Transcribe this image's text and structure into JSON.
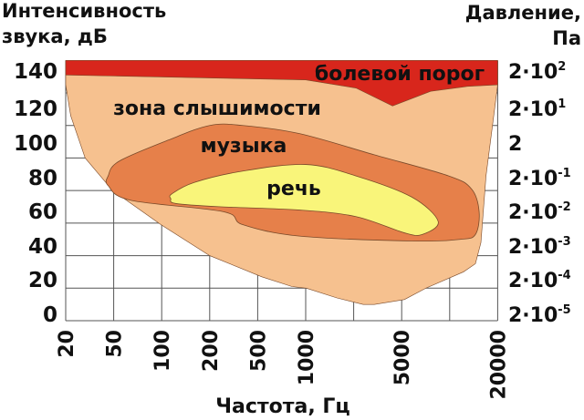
{
  "chart_data": {
    "type": "area",
    "title_left": [
      "Интенсивность",
      "звука, дБ"
    ],
    "title_right": [
      "Давление,",
      "Па"
    ],
    "xlabel": "Частота, Гц",
    "x_scale": "log",
    "x_gridlines_hz": [
      20,
      50,
      100,
      200,
      500,
      1000,
      2000,
      5000,
      10000,
      20000
    ],
    "x_ticks": [
      "20",
      "50",
      "100",
      "200",
      "500",
      "1000",
      "5000",
      "20000"
    ],
    "x_tick_values": [
      20,
      50,
      100,
      200,
      500,
      1000,
      5000,
      20000
    ],
    "y_ticks_left": [
      "140",
      "120",
      "100",
      "80",
      "60",
      "40",
      "20",
      "0"
    ],
    "y_ticks_right": [
      {
        "base": "2·10",
        "exp": "2"
      },
      {
        "base": "2·10",
        "exp": "1"
      },
      {
        "base": "2",
        "exp": ""
      },
      {
        "base": "2·10",
        "exp": "-1"
      },
      {
        "base": "2·10",
        "exp": "-2"
      },
      {
        "base": "2·10",
        "exp": "-3"
      },
      {
        "base": "2·10",
        "exp": "-4"
      },
      {
        "base": "2·10",
        "exp": "-5"
      }
    ],
    "ylim_db": [
      0,
      160
    ],
    "xlim_hz": [
      20,
      20000
    ],
    "grid": true,
    "regions": [
      {
        "name": "зона слышимости",
        "color": "#f6c18f",
        "points": [
          [
            20,
            160
          ],
          [
            20000,
            160
          ],
          [
            20000,
            145
          ],
          [
            18900,
            126
          ],
          [
            16900,
            89
          ],
          [
            15700,
            48
          ],
          [
            14500,
            35
          ],
          [
            12200,
            30
          ],
          [
            7100,
            20
          ],
          [
            5200,
            13
          ],
          [
            2960,
            10
          ],
          [
            2400,
            10
          ],
          [
            1570,
            14
          ],
          [
            1010,
            20
          ],
          [
            820,
            21
          ],
          [
            530,
            27
          ],
          [
            200,
            40
          ],
          [
            99,
            59
          ],
          [
            49,
            80
          ],
          [
            29,
            100
          ],
          [
            22,
            126
          ],
          [
            20,
            145
          ]
        ]
      },
      {
        "name": "болевой порог",
        "color": "#d8261c",
        "points": [
          [
            20,
            160
          ],
          [
            20000,
            160
          ],
          [
            20000,
            145
          ],
          [
            12900,
            144
          ],
          [
            7600,
            141
          ],
          [
            4200,
            132
          ],
          [
            2090,
            143
          ],
          [
            1000,
            148
          ],
          [
            20,
            151
          ]
        ]
      },
      {
        "name": "музыка",
        "color": "#e6804a",
        "points": [
          [
            45,
            89
          ],
          [
            54,
            98
          ],
          [
            110,
            111
          ],
          [
            200,
            120
          ],
          [
            377,
            120
          ],
          [
            914,
            115
          ],
          [
            2960,
            102
          ],
          [
            9860,
            89
          ],
          [
            13700,
            81
          ],
          [
            15300,
            67
          ],
          [
            14500,
            53
          ],
          [
            11600,
            50
          ],
          [
            5780,
            49
          ],
          [
            914,
            52
          ],
          [
            377,
            59
          ],
          [
            260,
            67
          ],
          [
            64,
            74
          ],
          [
            45,
            83
          ]
        ]
      },
      {
        "name": "речь",
        "color": "#f9f57a",
        "points": [
          [
            116,
            78
          ],
          [
            160,
            85
          ],
          [
            377,
            92
          ],
          [
            1000,
            96
          ],
          [
            2090,
            89
          ],
          [
            5780,
            76
          ],
          [
            8470,
            61
          ],
          [
            6730,
            53
          ],
          [
            5200,
            54
          ],
          [
            2090,
            64
          ],
          [
            914,
            68
          ],
          [
            248,
            70
          ],
          [
            123,
            72
          ],
          [
            114,
            75
          ]
        ]
      }
    ],
    "region_label_colors": {
      "болевой порог": "#ffffff",
      "зона слышимости": "#111111",
      "музыка": "#fbe3cf",
      "речь": "#111111"
    }
  }
}
